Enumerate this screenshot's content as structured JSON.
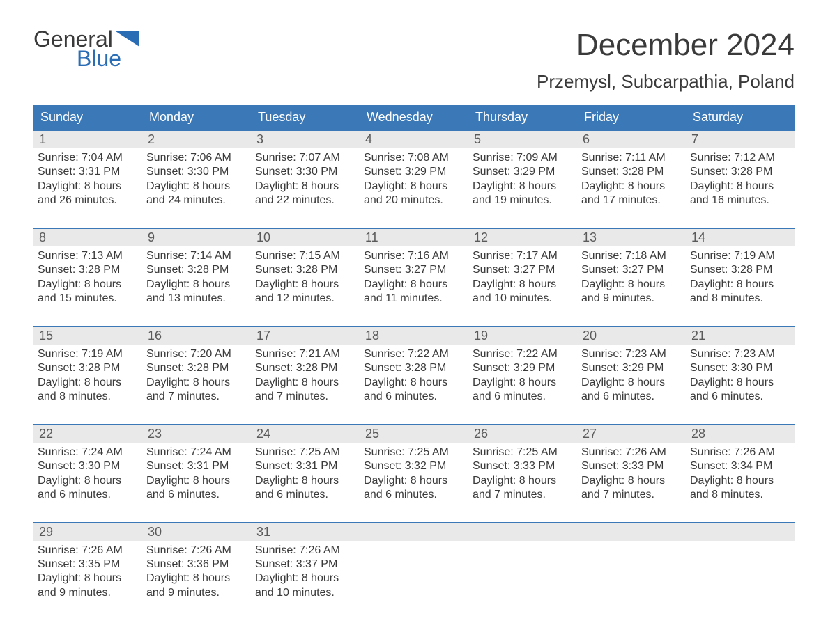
{
  "logo": {
    "word1": "General",
    "word2": "Blue"
  },
  "title": "December 2024",
  "location": "Przemysl, Subcarpathia, Poland",
  "colors": {
    "header_bg": "#3a78b8",
    "header_text": "#ffffff",
    "week_border": "#3a78b8",
    "daynum_bg": "#e9e9e9",
    "daynum_text": "#5a5a5a",
    "body_text": "#3a3a3a",
    "logo_blue": "#2a6db5",
    "page_bg": "#ffffff"
  },
  "typography": {
    "title_fontsize": 44,
    "location_fontsize": 26,
    "logo_fontsize": 32,
    "dayhead_fontsize": 18,
    "daynum_fontsize": 18,
    "body_fontsize": 16,
    "font_family": "Arial"
  },
  "day_headers": [
    "Sunday",
    "Monday",
    "Tuesday",
    "Wednesday",
    "Thursday",
    "Friday",
    "Saturday"
  ],
  "weeks": [
    [
      {
        "num": "1",
        "sunrise": "Sunrise: 7:04 AM",
        "sunset": "Sunset: 3:31 PM",
        "d1": "Daylight: 8 hours",
        "d2": "and 26 minutes."
      },
      {
        "num": "2",
        "sunrise": "Sunrise: 7:06 AM",
        "sunset": "Sunset: 3:30 PM",
        "d1": "Daylight: 8 hours",
        "d2": "and 24 minutes."
      },
      {
        "num": "3",
        "sunrise": "Sunrise: 7:07 AM",
        "sunset": "Sunset: 3:30 PM",
        "d1": "Daylight: 8 hours",
        "d2": "and 22 minutes."
      },
      {
        "num": "4",
        "sunrise": "Sunrise: 7:08 AM",
        "sunset": "Sunset: 3:29 PM",
        "d1": "Daylight: 8 hours",
        "d2": "and 20 minutes."
      },
      {
        "num": "5",
        "sunrise": "Sunrise: 7:09 AM",
        "sunset": "Sunset: 3:29 PM",
        "d1": "Daylight: 8 hours",
        "d2": "and 19 minutes."
      },
      {
        "num": "6",
        "sunrise": "Sunrise: 7:11 AM",
        "sunset": "Sunset: 3:28 PM",
        "d1": "Daylight: 8 hours",
        "d2": "and 17 minutes."
      },
      {
        "num": "7",
        "sunrise": "Sunrise: 7:12 AM",
        "sunset": "Sunset: 3:28 PM",
        "d1": "Daylight: 8 hours",
        "d2": "and 16 minutes."
      }
    ],
    [
      {
        "num": "8",
        "sunrise": "Sunrise: 7:13 AM",
        "sunset": "Sunset: 3:28 PM",
        "d1": "Daylight: 8 hours",
        "d2": "and 15 minutes."
      },
      {
        "num": "9",
        "sunrise": "Sunrise: 7:14 AM",
        "sunset": "Sunset: 3:28 PM",
        "d1": "Daylight: 8 hours",
        "d2": "and 13 minutes."
      },
      {
        "num": "10",
        "sunrise": "Sunrise: 7:15 AM",
        "sunset": "Sunset: 3:28 PM",
        "d1": "Daylight: 8 hours",
        "d2": "and 12 minutes."
      },
      {
        "num": "11",
        "sunrise": "Sunrise: 7:16 AM",
        "sunset": "Sunset: 3:27 PM",
        "d1": "Daylight: 8 hours",
        "d2": "and 11 minutes."
      },
      {
        "num": "12",
        "sunrise": "Sunrise: 7:17 AM",
        "sunset": "Sunset: 3:27 PM",
        "d1": "Daylight: 8 hours",
        "d2": "and 10 minutes."
      },
      {
        "num": "13",
        "sunrise": "Sunrise: 7:18 AM",
        "sunset": "Sunset: 3:27 PM",
        "d1": "Daylight: 8 hours",
        "d2": "and 9 minutes."
      },
      {
        "num": "14",
        "sunrise": "Sunrise: 7:19 AM",
        "sunset": "Sunset: 3:28 PM",
        "d1": "Daylight: 8 hours",
        "d2": "and 8 minutes."
      }
    ],
    [
      {
        "num": "15",
        "sunrise": "Sunrise: 7:19 AM",
        "sunset": "Sunset: 3:28 PM",
        "d1": "Daylight: 8 hours",
        "d2": "and 8 minutes."
      },
      {
        "num": "16",
        "sunrise": "Sunrise: 7:20 AM",
        "sunset": "Sunset: 3:28 PM",
        "d1": "Daylight: 8 hours",
        "d2": "and 7 minutes."
      },
      {
        "num": "17",
        "sunrise": "Sunrise: 7:21 AM",
        "sunset": "Sunset: 3:28 PM",
        "d1": "Daylight: 8 hours",
        "d2": "and 7 minutes."
      },
      {
        "num": "18",
        "sunrise": "Sunrise: 7:22 AM",
        "sunset": "Sunset: 3:28 PM",
        "d1": "Daylight: 8 hours",
        "d2": "and 6 minutes."
      },
      {
        "num": "19",
        "sunrise": "Sunrise: 7:22 AM",
        "sunset": "Sunset: 3:29 PM",
        "d1": "Daylight: 8 hours",
        "d2": "and 6 minutes."
      },
      {
        "num": "20",
        "sunrise": "Sunrise: 7:23 AM",
        "sunset": "Sunset: 3:29 PM",
        "d1": "Daylight: 8 hours",
        "d2": "and 6 minutes."
      },
      {
        "num": "21",
        "sunrise": "Sunrise: 7:23 AM",
        "sunset": "Sunset: 3:30 PM",
        "d1": "Daylight: 8 hours",
        "d2": "and 6 minutes."
      }
    ],
    [
      {
        "num": "22",
        "sunrise": "Sunrise: 7:24 AM",
        "sunset": "Sunset: 3:30 PM",
        "d1": "Daylight: 8 hours",
        "d2": "and 6 minutes."
      },
      {
        "num": "23",
        "sunrise": "Sunrise: 7:24 AM",
        "sunset": "Sunset: 3:31 PM",
        "d1": "Daylight: 8 hours",
        "d2": "and 6 minutes."
      },
      {
        "num": "24",
        "sunrise": "Sunrise: 7:25 AM",
        "sunset": "Sunset: 3:31 PM",
        "d1": "Daylight: 8 hours",
        "d2": "and 6 minutes."
      },
      {
        "num": "25",
        "sunrise": "Sunrise: 7:25 AM",
        "sunset": "Sunset: 3:32 PM",
        "d1": "Daylight: 8 hours",
        "d2": "and 6 minutes."
      },
      {
        "num": "26",
        "sunrise": "Sunrise: 7:25 AM",
        "sunset": "Sunset: 3:33 PM",
        "d1": "Daylight: 8 hours",
        "d2": "and 7 minutes."
      },
      {
        "num": "27",
        "sunrise": "Sunrise: 7:26 AM",
        "sunset": "Sunset: 3:33 PM",
        "d1": "Daylight: 8 hours",
        "d2": "and 7 minutes."
      },
      {
        "num": "28",
        "sunrise": "Sunrise: 7:26 AM",
        "sunset": "Sunset: 3:34 PM",
        "d1": "Daylight: 8 hours",
        "d2": "and 8 minutes."
      }
    ],
    [
      {
        "num": "29",
        "sunrise": "Sunrise: 7:26 AM",
        "sunset": "Sunset: 3:35 PM",
        "d1": "Daylight: 8 hours",
        "d2": "and 9 minutes."
      },
      {
        "num": "30",
        "sunrise": "Sunrise: 7:26 AM",
        "sunset": "Sunset: 3:36 PM",
        "d1": "Daylight: 8 hours",
        "d2": "and 9 minutes."
      },
      {
        "num": "31",
        "sunrise": "Sunrise: 7:26 AM",
        "sunset": "Sunset: 3:37 PM",
        "d1": "Daylight: 8 hours",
        "d2": "and 10 minutes."
      },
      {
        "empty": true
      },
      {
        "empty": true
      },
      {
        "empty": true
      },
      {
        "empty": true
      }
    ]
  ]
}
